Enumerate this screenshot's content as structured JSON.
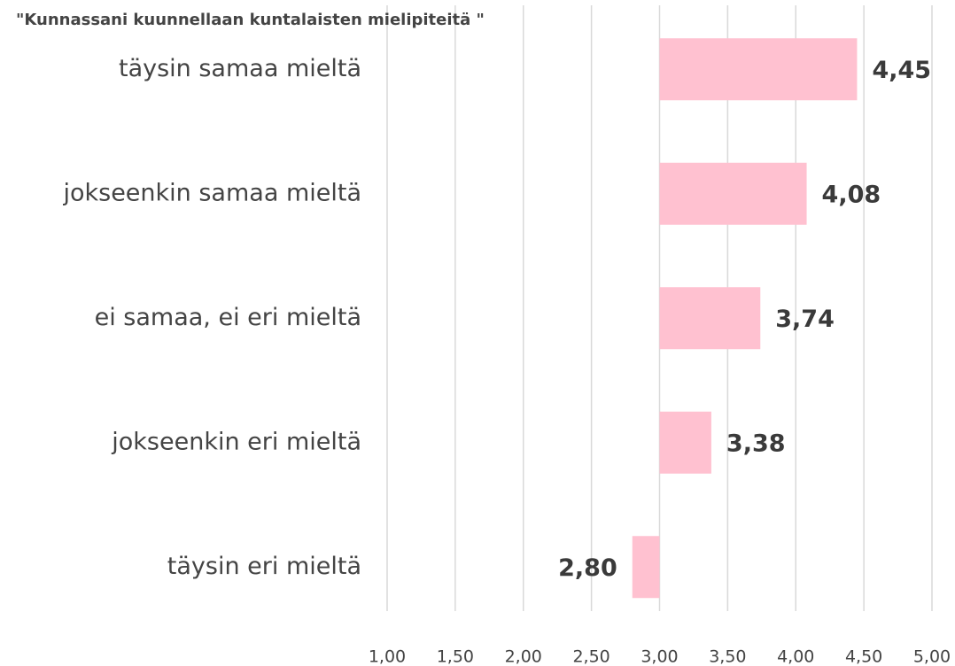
{
  "chart_data": {
    "type": "barh",
    "title": "\"Kunnassani kuunnellaan kuntalaisten mielipiteitä \"",
    "categories": [
      "täysin samaa mieltä",
      "jokseenkin samaa mieltä",
      "ei samaa, ei eri mieltä",
      "jokseenkin eri mieltä",
      "täysin eri mieltä"
    ],
    "values": [
      4.45,
      4.08,
      3.74,
      3.38,
      2.8
    ],
    "value_labels": [
      "4,45",
      "4,08",
      "3,74",
      "3,38",
      "2,80"
    ],
    "color": "#ffc1d0",
    "bar_base": 3,
    "xlim": [
      1,
      5
    ],
    "xticks": [
      {
        "value": 1,
        "label": "1,00"
      },
      {
        "value": 1.5,
        "label": "1,50"
      },
      {
        "value": 2,
        "label": "2,00"
      },
      {
        "value": 2.5,
        "label": "2,50"
      },
      {
        "value": 3,
        "label": "3,00"
      },
      {
        "value": 3.5,
        "label": "3,50"
      },
      {
        "value": 4,
        "label": "4,00"
      },
      {
        "value": 4.5,
        "label": "4,50"
      },
      {
        "value": 5,
        "label": "5,00"
      }
    ],
    "grid": true
  }
}
